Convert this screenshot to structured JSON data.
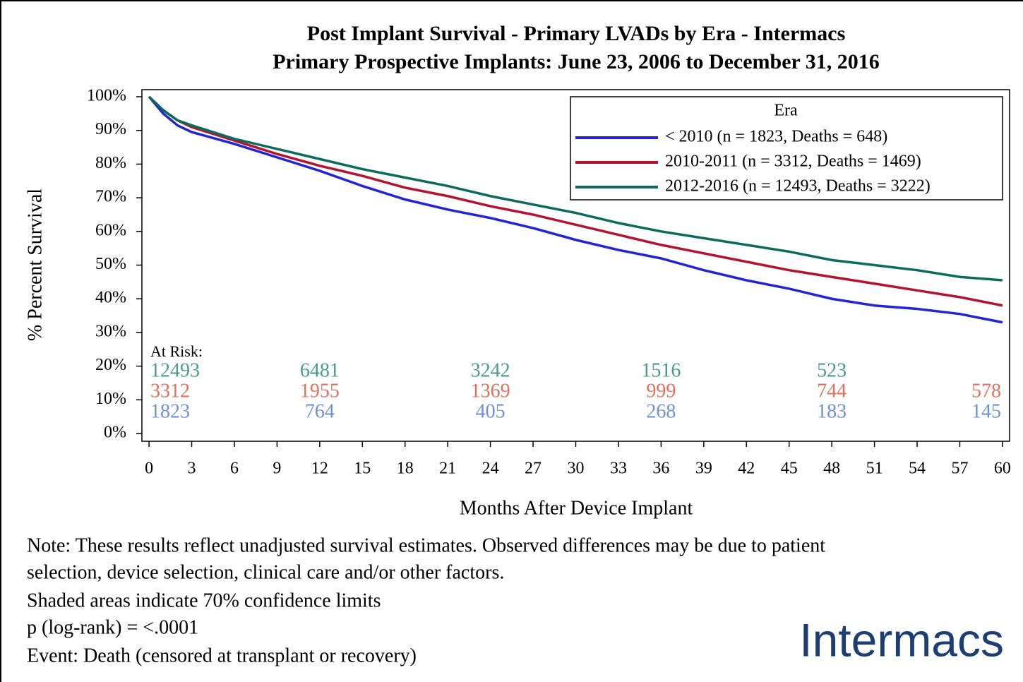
{
  "chart_data": {
    "type": "line",
    "title": "Post Implant Survival - Primary LVADs by Era - Intermacs",
    "subtitle": "Primary Prospective Implants: June 23, 2006 to December 31, 2016",
    "xlabel": "Months After Device Implant",
    "ylabel": "% Percent Survival",
    "x": [
      0,
      1,
      2,
      3,
      6,
      9,
      12,
      15,
      18,
      21,
      24,
      27,
      30,
      33,
      36,
      39,
      42,
      45,
      48,
      51,
      54,
      57,
      60
    ],
    "series": [
      {
        "name": "< 2010 (n = 1823, Deaths = 648)",
        "color": "#2323d8",
        "values": [
          100,
          95,
          91.5,
          89.5,
          86,
          82,
          78,
          73.5,
          69.5,
          66.5,
          64,
          61,
          57.5,
          54.5,
          52,
          48.5,
          45.5,
          43,
          40,
          38,
          37,
          35.5,
          33
        ]
      },
      {
        "name": "2010-2011 (n = 3312, Deaths = 1469)",
        "color": "#b5122e",
        "values": [
          100,
          96,
          93,
          91,
          87,
          83,
          79.5,
          76.5,
          73,
          70.5,
          67.5,
          65,
          62,
          59,
          56,
          53.5,
          51,
          48.5,
          46.5,
          44.5,
          42.5,
          40.5,
          38
        ]
      },
      {
        "name": "2012-2016 (n = 12493, Deaths = 3222)",
        "color": "#0b6b5e",
        "values": [
          100,
          96,
          93,
          91.5,
          87.5,
          84.5,
          81.5,
          78.5,
          76,
          73.5,
          70.5,
          68,
          65.5,
          62.5,
          60,
          58,
          56,
          54,
          51.5,
          50,
          48.5,
          46.5,
          45.5
        ]
      }
    ],
    "legend_title": "Era",
    "legend_position": "top-right",
    "xlim": [
      -0.5,
      60.5
    ],
    "ylim": [
      -2.3,
      102.1
    ],
    "xticks": [
      0,
      3,
      6,
      9,
      12,
      15,
      18,
      21,
      24,
      27,
      30,
      33,
      36,
      39,
      42,
      45,
      48,
      51,
      54,
      57,
      60
    ],
    "yticks": [
      {
        "value": 0,
        "label": "0%"
      },
      {
        "value": 10,
        "label": "10%"
      },
      {
        "value": 20,
        "label": "20%"
      },
      {
        "value": 30,
        "label": "30%"
      },
      {
        "value": 40,
        "label": "40%"
      },
      {
        "value": 50,
        "label": "50%"
      },
      {
        "value": 60,
        "label": "60%"
      },
      {
        "value": 70,
        "label": "70%"
      },
      {
        "value": 80,
        "label": "80%"
      },
      {
        "value": 90,
        "label": "90%"
      },
      {
        "value": 100,
        "label": "100%"
      }
    ],
    "at_risk": {
      "label": "At Risk:",
      "x": [
        0,
        12,
        24,
        36,
        48,
        60
      ],
      "rows": [
        {
          "color": "#4a9a8a",
          "values": [
            12493,
            6481,
            3242,
            1516,
            523,
            null
          ]
        },
        {
          "color": "#e0705e",
          "values": [
            3312,
            1955,
            1369,
            999,
            744,
            578
          ]
        },
        {
          "color": "#7090d4",
          "values": [
            1823,
            764,
            405,
            268,
            183,
            145
          ]
        }
      ]
    }
  },
  "notes": [
    "Note: These results reflect unadjusted survival estimates. Observed differences may be due to patient",
    "selection, device selection, clinical care and/or other factors.",
    "Shaded areas indicate 70% confidence limits",
    "p (log-rank) = <.0001",
    "Event: Death (censored at transplant or recovery)"
  ],
  "logo": "Intermacs"
}
